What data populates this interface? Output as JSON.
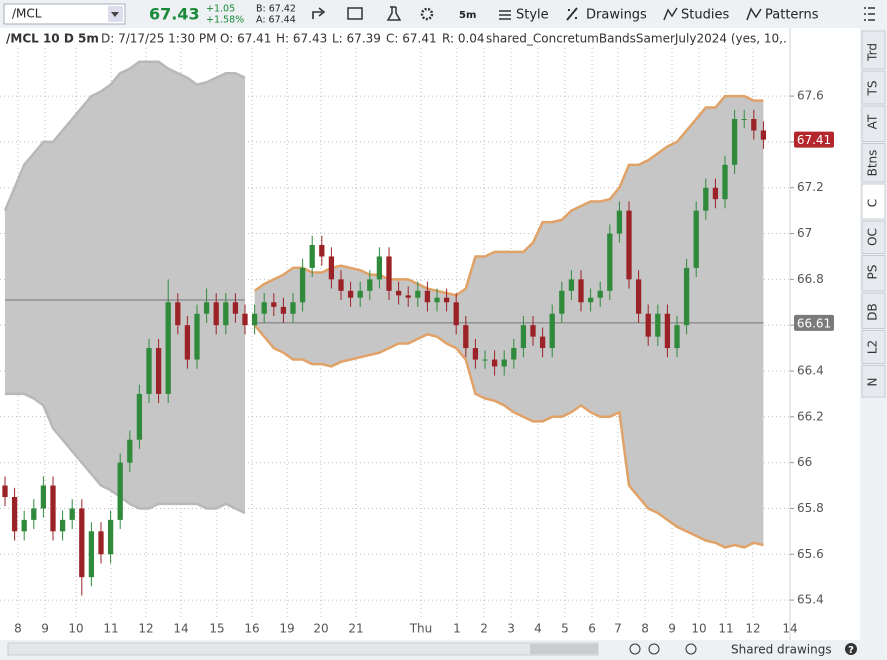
{
  "toolbar": {
    "symbol": "/MCL",
    "last": "67.43",
    "net_change": "+1.05",
    "pct_change": "+1.58%",
    "bid": "B: 67.42",
    "ask": "A: 67.44",
    "aggregation": "5m",
    "menus": [
      "Style",
      "Drawings",
      "Studies",
      "Patterns"
    ]
  },
  "info_bar": {
    "title": "/MCL 10 D 5m",
    "items": [
      "D: 7/17/25 1:30 PM",
      "O: 67.41",
      "H: 67.43",
      "L: 67.39",
      "C: 67.41",
      "R: 0.04"
    ],
    "study": "shared_ConcretumBandsSamerJuly2024 (yes, 10,..."
  },
  "sidebar": {
    "tabs": [
      "Trd",
      "TS",
      "AT",
      "Btns",
      "C",
      "OC",
      "PS",
      "DB",
      "L2",
      "N"
    ]
  },
  "footer": {
    "shared_drawings": "Shared drawings",
    "help": "?"
  },
  "chart_data": {
    "type": "candlestick",
    "grid": true,
    "up_color": "#2f8a3c",
    "down_color": "#9b2226",
    "ylim": [
      65.313,
      67.81
    ],
    "yticks": [
      65.4,
      65.6,
      65.8,
      66,
      66.2,
      66.4,
      66.6,
      66.8,
      67,
      67.2,
      67.4,
      67.6
    ],
    "xlim": [
      -0.52,
      81.77
    ],
    "xticks": [
      {
        "value": 1.35,
        "label": "8"
      },
      {
        "value": 4.17,
        "label": "9"
      },
      {
        "value": 7.4,
        "label": "10"
      },
      {
        "value": 11.04,
        "label": "11"
      },
      {
        "value": 14.69,
        "label": "12"
      },
      {
        "value": 18.33,
        "label": "14"
      },
      {
        "value": 22.08,
        "label": "15"
      },
      {
        "value": 25.73,
        "label": "16"
      },
      {
        "value": 29.38,
        "label": "19"
      },
      {
        "value": 32.92,
        "label": "20"
      },
      {
        "value": 36.56,
        "label": "21"
      },
      {
        "value": 43.33,
        "label": "Thu"
      },
      {
        "value": 47.08,
        "label": "1"
      },
      {
        "value": 49.9,
        "label": "2"
      },
      {
        "value": 52.71,
        "label": "3"
      },
      {
        "value": 55.52,
        "label": "4"
      },
      {
        "value": 58.33,
        "label": "5"
      },
      {
        "value": 61.15,
        "label": "6"
      },
      {
        "value": 63.85,
        "label": "7"
      },
      {
        "value": 66.67,
        "label": "8"
      },
      {
        "value": 69.48,
        "label": "9"
      },
      {
        "value": 72.29,
        "label": "10"
      },
      {
        "value": 75.1,
        "label": "11"
      },
      {
        "value": 77.92,
        "label": "12"
      },
      {
        "value": 81.77,
        "label": "14"
      }
    ],
    "x": [
      0,
      1,
      2,
      3,
      4,
      5,
      6,
      7,
      8,
      9,
      10,
      11,
      12,
      13,
      14,
      15,
      16,
      17,
      18,
      19,
      20,
      21,
      22,
      23,
      24,
      25,
      26,
      27,
      28,
      29,
      30,
      31,
      32,
      33,
      34,
      35,
      36,
      37,
      38,
      39,
      40,
      41,
      42,
      43,
      44,
      45,
      46,
      47,
      48,
      49,
      50,
      51,
      52,
      53,
      54,
      55,
      56,
      57,
      58,
      59,
      60,
      61,
      62,
      63,
      64,
      65,
      66,
      67,
      68,
      69,
      70,
      71,
      72,
      73,
      74,
      75,
      76,
      77,
      78,
      79
    ],
    "open": [
      65.9,
      65.85,
      65.7,
      65.75,
      65.8,
      65.9,
      65.7,
      65.75,
      65.8,
      65.5,
      65.7,
      65.6,
      65.75,
      66.0,
      66.1,
      66.3,
      66.5,
      66.3,
      66.7,
      66.6,
      66.45,
      66.65,
      66.7,
      66.6,
      66.7,
      66.65,
      66.6,
      66.65,
      66.7,
      66.68,
      66.65,
      66.7,
      66.85,
      66.95,
      66.9,
      66.8,
      66.75,
      66.72,
      66.75,
      66.8,
      66.9,
      66.75,
      66.73,
      66.72,
      66.75,
      66.7,
      66.72,
      66.7,
      66.6,
      66.5,
      66.45,
      66.45,
      66.42,
      66.45,
      66.5,
      66.6,
      66.55,
      66.5,
      66.65,
      66.75,
      66.8,
      66.7,
      66.72,
      66.75,
      67.0,
      67.1,
      66.8,
      66.65,
      66.55,
      66.65,
      66.5,
      66.6,
      66.85,
      67.1,
      67.2,
      67.15,
      67.3,
      67.5,
      67.5,
      67.45
    ],
    "high": [
      65.94,
      65.89,
      65.79,
      65.84,
      65.94,
      65.94,
      65.79,
      65.84,
      65.84,
      65.74,
      65.74,
      65.79,
      66.04,
      66.14,
      66.34,
      66.54,
      66.54,
      66.8,
      66.74,
      66.64,
      66.69,
      66.76,
      66.74,
      66.74,
      66.74,
      66.69,
      66.69,
      66.74,
      66.74,
      66.72,
      66.74,
      66.89,
      66.99,
      66.99,
      66.94,
      66.84,
      66.79,
      66.79,
      66.84,
      66.94,
      66.94,
      66.79,
      66.77,
      66.79,
      66.79,
      66.76,
      66.76,
      66.74,
      66.64,
      66.54,
      66.49,
      66.49,
      66.49,
      66.54,
      66.64,
      66.64,
      66.59,
      66.69,
      66.79,
      66.84,
      66.84,
      66.76,
      66.79,
      67.04,
      67.14,
      67.14,
      66.84,
      66.69,
      66.69,
      66.69,
      66.64,
      66.89,
      67.14,
      67.24,
      67.24,
      67.34,
      67.54,
      67.54,
      67.54,
      67.49
    ],
    "low": [
      65.81,
      65.66,
      65.66,
      65.71,
      65.76,
      65.66,
      65.66,
      65.71,
      65.42,
      65.46,
      65.56,
      65.56,
      65.71,
      65.96,
      66.06,
      66.26,
      66.26,
      66.26,
      66.56,
      66.41,
      66.41,
      66.61,
      66.56,
      66.56,
      66.61,
      66.56,
      66.56,
      66.61,
      66.64,
      66.61,
      66.61,
      66.66,
      66.81,
      66.86,
      66.76,
      66.71,
      66.68,
      66.68,
      66.71,
      66.76,
      66.71,
      66.69,
      66.68,
      66.68,
      66.66,
      66.66,
      66.66,
      66.56,
      66.46,
      66.41,
      66.41,
      66.38,
      66.38,
      66.41,
      66.46,
      66.51,
      66.46,
      66.46,
      66.61,
      66.71,
      66.66,
      66.66,
      66.68,
      66.71,
      66.96,
      66.76,
      66.61,
      66.51,
      66.51,
      66.46,
      66.46,
      66.56,
      66.81,
      67.06,
      67.11,
      67.11,
      67.26,
      67.46,
      67.41,
      67.37
    ],
    "close": [
      65.85,
      65.7,
      65.75,
      65.8,
      65.9,
      65.7,
      65.75,
      65.8,
      65.5,
      65.7,
      65.6,
      65.75,
      66.0,
      66.1,
      66.3,
      66.5,
      66.3,
      66.7,
      66.6,
      66.45,
      66.65,
      66.7,
      66.6,
      66.7,
      66.65,
      66.6,
      66.65,
      66.7,
      66.68,
      66.65,
      66.7,
      66.85,
      66.95,
      66.9,
      66.8,
      66.75,
      66.72,
      66.75,
      66.8,
      66.9,
      66.75,
      66.73,
      66.72,
      66.75,
      66.7,
      66.72,
      66.7,
      66.6,
      66.5,
      66.45,
      66.45,
      66.42,
      66.45,
      66.5,
      66.6,
      66.55,
      66.5,
      66.65,
      66.75,
      66.8,
      66.7,
      66.72,
      66.75,
      67.0,
      67.1,
      66.8,
      66.65,
      66.55,
      66.65,
      66.5,
      66.6,
      66.85,
      67.1,
      67.2,
      67.15,
      67.3,
      67.5,
      67.5,
      67.45,
      67.41
    ],
    "bands": [
      {
        "fill": "#c6c6c6",
        "edge_color": "#b8b8b8",
        "x": [
          0,
          1,
          2,
          3,
          4,
          5,
          6,
          7,
          8,
          9,
          10,
          11,
          12,
          13,
          14,
          15,
          16,
          17,
          18,
          19,
          20,
          21,
          22,
          23,
          24,
          25
        ],
        "upper": [
          67.1,
          67.2,
          67.3,
          67.35,
          67.4,
          67.4,
          67.45,
          67.5,
          67.55,
          67.6,
          67.62,
          67.65,
          67.7,
          67.72,
          67.75,
          67.75,
          67.75,
          67.72,
          67.7,
          67.68,
          67.65,
          67.66,
          67.68,
          67.7,
          67.7,
          67.68
        ],
        "lower": [
          66.3,
          66.3,
          66.3,
          66.28,
          66.25,
          66.15,
          66.1,
          66.05,
          66.0,
          65.95,
          65.9,
          65.88,
          65.85,
          65.82,
          65.8,
          65.8,
          65.82,
          65.82,
          65.82,
          65.82,
          65.82,
          65.8,
          65.8,
          65.82,
          65.8,
          65.78
        ]
      },
      {
        "fill": "#c6c6c6",
        "edge_color": "#e0a266",
        "x": [
          26,
          27,
          28,
          29,
          30,
          31,
          32,
          33,
          34,
          35,
          36,
          37,
          38,
          39,
          40,
          41,
          42,
          43,
          44,
          45,
          46,
          47,
          48,
          49,
          50,
          51,
          52,
          53,
          54,
          55,
          56,
          57,
          58,
          59,
          60,
          61,
          62,
          63,
          64,
          65,
          66,
          67,
          68,
          69,
          70,
          71,
          72,
          73,
          74,
          75,
          76,
          77,
          78,
          79
        ],
        "upper": [
          66.75,
          66.78,
          66.8,
          66.82,
          66.85,
          66.85,
          66.83,
          66.83,
          66.85,
          66.86,
          66.85,
          66.84,
          66.82,
          66.82,
          66.8,
          66.8,
          66.8,
          66.78,
          66.76,
          66.75,
          66.74,
          66.73,
          66.76,
          66.9,
          66.9,
          66.92,
          66.92,
          66.92,
          66.92,
          66.96,
          67.05,
          67.05,
          67.06,
          67.1,
          67.12,
          67.14,
          67.14,
          67.15,
          67.2,
          67.3,
          67.3,
          67.32,
          67.35,
          67.38,
          67.4,
          67.45,
          67.5,
          67.55,
          67.55,
          67.6,
          67.6,
          67.6,
          67.58,
          67.58
        ],
        "lower": [
          66.6,
          66.55,
          66.5,
          66.48,
          66.45,
          66.45,
          66.43,
          66.43,
          66.42,
          66.44,
          66.45,
          66.46,
          66.47,
          66.48,
          66.5,
          66.52,
          66.52,
          66.54,
          66.56,
          66.55,
          66.52,
          66.5,
          66.45,
          66.3,
          66.28,
          66.27,
          66.25,
          66.22,
          66.2,
          66.18,
          66.18,
          66.2,
          66.2,
          66.22,
          66.25,
          66.22,
          66.2,
          66.2,
          66.22,
          65.9,
          65.85,
          65.8,
          65.78,
          65.75,
          65.72,
          65.7,
          65.68,
          65.66,
          65.65,
          65.63,
          65.64,
          65.63,
          65.65,
          65.64
        ]
      }
    ],
    "reference_lines": [
      {
        "value": 66.71,
        "x": [
          0,
          25
        ]
      },
      {
        "value": 66.61,
        "x": [
          26,
          79
        ]
      }
    ],
    "last_color": "#b3262b",
    "ref_badge_color": "#7a7a7a"
  }
}
